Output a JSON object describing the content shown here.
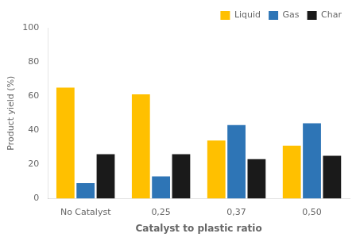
{
  "chart_data": {
    "type": "bar",
    "categories": [
      "No Catalyst",
      "0,25",
      "0,37",
      "0,50"
    ],
    "series": [
      {
        "name": "Liquid",
        "color": "#FFC000",
        "values": [
          65,
          61,
          34,
          31
        ]
      },
      {
        "name": "Gas",
        "color": "#2E75B6",
        "values": [
          9,
          13,
          43,
          44
        ]
      },
      {
        "name": "Char",
        "color": "#1A1A1A",
        "values": [
          26,
          26,
          23,
          25
        ]
      }
    ],
    "xlabel": "Catalyst to plastic ratio",
    "ylabel": "Product yield (%)",
    "ylim": [
      0,
      100
    ],
    "yticks": [
      0,
      20,
      40,
      60,
      80,
      100
    ],
    "grid": false,
    "legend": "upper right"
  }
}
